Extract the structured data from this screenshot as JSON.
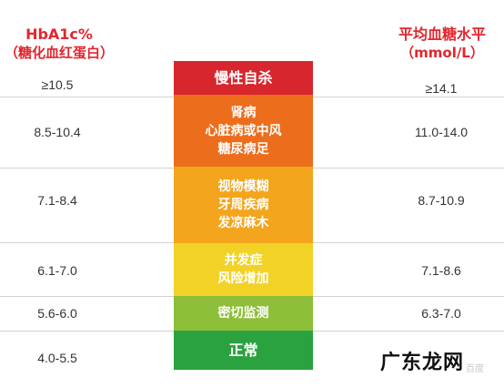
{
  "header_left": {
    "line1": "HbA1c%",
    "line2": "（糖化血红蛋白）"
  },
  "header_right": {
    "line1": "平均血糖水平",
    "line2": "（mmol/L）"
  },
  "rows": [
    {
      "hba1c": "≥10.5",
      "glucose": "≥14.1",
      "labels": [
        "慢性自杀"
      ],
      "color": "#d7262e"
    },
    {
      "hba1c": "8.5-10.4",
      "glucose": "11.0-14.0",
      "labels": [
        "肾病",
        "心脏病或中风",
        "糖尿病足"
      ],
      "color": "#ec6d1c"
    },
    {
      "hba1c": "7.1-8.4",
      "glucose": "8.7-10.9",
      "labels": [
        "视物模糊",
        "牙周疾病",
        "发凉麻木"
      ],
      "color": "#f3a51d"
    },
    {
      "hba1c": "6.1-7.0",
      "glucose": "7.1-8.6",
      "labels": [
        "并发症",
        "风险增加"
      ],
      "color": "#f2d226"
    },
    {
      "hba1c": "5.6-6.0",
      "glucose": "6.3-7.0",
      "labels": [
        "密切监测"
      ],
      "color": "#8dbf38"
    },
    {
      "hba1c": "4.0-5.5",
      "glucose": "",
      "labels": [
        "正常"
      ],
      "color": "#2aa23f"
    }
  ],
  "watermark": {
    "text": "广东龙网",
    "sub": "百度"
  }
}
